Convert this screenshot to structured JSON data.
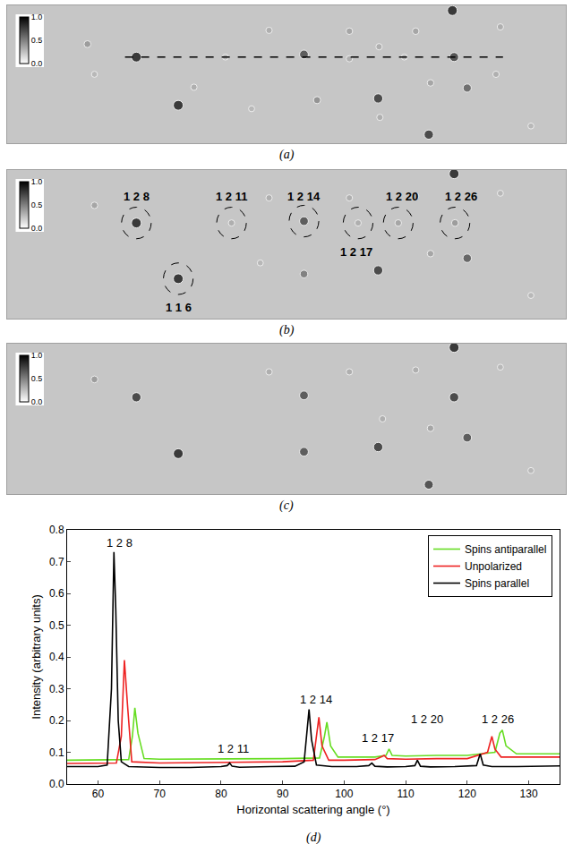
{
  "chart_data": [
    {
      "type": "scatter",
      "title": "(a)",
      "tick_labels": false,
      "xlim": [
        0,
        640
      ],
      "ylim": [
        160,
        0
      ],
      "x": [
        510,
        148,
        340,
        512,
        196,
        425,
        483,
        527,
        92,
        300,
        392,
        426,
        468,
        565,
        250,
        392,
        455,
        485,
        355,
        100,
        214,
        560,
        280,
        427,
        600
      ],
      "y": [
        6,
        60,
        57,
        60,
        116,
        108,
        150,
        96,
        45,
        29,
        30,
        48,
        30,
        25,
        60,
        62,
        60,
        90,
        110,
        80,
        95,
        80,
        120,
        130,
        140
      ],
      "intensity": [
        1.0,
        1.0,
        0.8,
        0.85,
        1.0,
        0.9,
        0.9,
        0.7,
        0.45,
        0.35,
        0.4,
        0.35,
        0.4,
        0.35,
        0.3,
        0.35,
        0.3,
        0.4,
        0.5,
        0.3,
        0.35,
        0.35,
        0.3,
        0.35,
        0.3
      ],
      "colorbar_range": [
        0,
        1
      ],
      "colorbar_ticks": [
        {
          "value": 0,
          "label": "0.0"
        },
        {
          "value": 0.5,
          "label": "0.5"
        },
        {
          "value": 1,
          "label": "1.0"
        }
      ],
      "guide_line": {
        "x": [
          135,
          568
        ],
        "y": 60,
        "line_style": "dashed"
      }
    },
    {
      "type": "scatter",
      "title": "(b)",
      "tick_labels": false,
      "xlim": [
        0,
        640
      ],
      "ylim": [
        160,
        0
      ],
      "x": [
        512,
        148,
        196,
        257,
        340,
        402,
        448,
        513,
        425,
        527,
        340,
        100,
        300,
        392,
        468,
        565,
        485,
        600,
        290
      ],
      "y": [
        4,
        57,
        117,
        57,
        55,
        57,
        57,
        57,
        108,
        95,
        112,
        38,
        30,
        30,
        28,
        25,
        90,
        135,
        100
      ],
      "intensity": [
        1.0,
        1.0,
        1.0,
        0.35,
        0.8,
        0.35,
        0.4,
        0.45,
        0.9,
        0.75,
        0.6,
        0.4,
        0.35,
        0.35,
        0.35,
        0.3,
        0.4,
        0.3,
        0.3
      ],
      "colorbar_range": [
        0,
        1
      ],
      "colorbar_ticks": [
        {
          "value": 0,
          "label": "0.0"
        },
        {
          "value": 0.5,
          "label": "0.5"
        },
        {
          "value": 1,
          "label": "1.0"
        }
      ],
      "annotations": [
        {
          "text": "1 2 8",
          "x": 148,
          "y": 28,
          "target_x": 148,
          "target_y": 57
        },
        {
          "text": "1 2 11",
          "x": 257,
          "y": 28,
          "target_x": 257,
          "target_y": 57
        },
        {
          "text": "1 2 14",
          "x": 340,
          "y": 28,
          "target_x": 340,
          "target_y": 55
        },
        {
          "text": "1 2 20",
          "x": 452,
          "y": 28,
          "target_x": 448,
          "target_y": 57
        },
        {
          "text": "1 2 26",
          "x": 520,
          "y": 28,
          "target_x": 513,
          "target_y": 57
        },
        {
          "text": "1 2 17",
          "x": 400,
          "y": 88,
          "target_x": 402,
          "target_y": 57
        },
        {
          "text": "1 1 6",
          "x": 196,
          "y": 148,
          "target_x": 196,
          "target_y": 117
        }
      ]
    },
    {
      "type": "scatter",
      "title": "(c)",
      "tick_labels": false,
      "xlim": [
        0,
        640
      ],
      "ylim": [
        160,
        0
      ],
      "x": [
        512,
        148,
        340,
        512,
        196,
        425,
        483,
        527,
        340,
        100,
        300,
        392,
        468,
        565,
        485,
        430,
        600
      ],
      "y": [
        4,
        57,
        55,
        57,
        117,
        110,
        150,
        100,
        115,
        38,
        30,
        30,
        28,
        25,
        90,
        80,
        135
      ],
      "intensity": [
        1.0,
        0.9,
        0.8,
        0.9,
        1.0,
        0.9,
        0.85,
        0.8,
        0.8,
        0.45,
        0.35,
        0.35,
        0.35,
        0.3,
        0.4,
        0.35,
        0.3
      ],
      "colorbar_range": [
        0,
        1
      ],
      "colorbar_ticks": [
        {
          "value": 0,
          "label": "0.0"
        },
        {
          "value": 0.5,
          "label": "0.5"
        },
        {
          "value": 1,
          "label": "1.0"
        }
      ]
    },
    {
      "type": "line",
      "title": "(d)",
      "x_label": "Horizontal scattering angle (°)",
      "y_label": "Intensity (arbitrary units)",
      "xlim": [
        55,
        135
      ],
      "xticks": [
        60,
        70,
        80,
        90,
        100,
        110,
        120,
        130
      ],
      "ylim": [
        0,
        0.8
      ],
      "yticks": [
        {
          "value": 0,
          "label": "0.0"
        },
        {
          "value": 0.1,
          "label": "0.1"
        },
        {
          "value": 0.2,
          "label": "0.2"
        },
        {
          "value": 0.3,
          "label": "0.3"
        },
        {
          "value": 0.4,
          "label": "0.4"
        },
        {
          "value": 0.5,
          "label": "0.5"
        },
        {
          "value": 0.6,
          "label": "0.6"
        },
        {
          "value": 0.7,
          "label": "0.7"
        },
        {
          "value": 0.8,
          "label": "0.8"
        }
      ],
      "legend": "upper right",
      "series": [
        {
          "name": "Spins antiparallel",
          "color": "#66dd22",
          "x": [
            55,
            60,
            65,
            65.6,
            66,
            66.5,
            67.5,
            70,
            80,
            90,
            96,
            96.8,
            97.2,
            97.8,
            99,
            105,
            106.8,
            107.3,
            107.8,
            110,
            115,
            120,
            124.5,
            125.3,
            125.7,
            126.3,
            128,
            135
          ],
          "values": [
            0.075,
            0.075,
            0.077,
            0.15,
            0.24,
            0.16,
            0.08,
            0.078,
            0.078,
            0.08,
            0.082,
            0.15,
            0.195,
            0.12,
            0.085,
            0.085,
            0.09,
            0.11,
            0.09,
            0.088,
            0.09,
            0.09,
            0.1,
            0.16,
            0.17,
            0.12,
            0.095,
            0.095
          ]
        },
        {
          "name": "Unpolarized",
          "color": "#ee2222",
          "x": [
            55,
            60,
            63,
            63.8,
            64.3,
            64.8,
            65.5,
            70,
            80,
            90,
            95,
            95.5,
            95.9,
            96.4,
            97.5,
            100,
            105,
            106,
            106.5,
            107,
            110,
            115,
            120,
            123.3,
            124,
            124.5,
            125.5,
            130,
            135
          ],
          "values": [
            0.065,
            0.065,
            0.066,
            0.15,
            0.39,
            0.25,
            0.07,
            0.066,
            0.068,
            0.07,
            0.075,
            0.15,
            0.21,
            0.12,
            0.075,
            0.075,
            0.077,
            0.085,
            0.09,
            0.08,
            0.078,
            0.08,
            0.08,
            0.1,
            0.15,
            0.11,
            0.085,
            0.085,
            0.085
          ]
        },
        {
          "name": "Spins parallel",
          "color": "#000000",
          "x": [
            55,
            58,
            60,
            61.5,
            62.2,
            62.6,
            62.9,
            63.3,
            63.8,
            65,
            70,
            75,
            80,
            81,
            81.4,
            81.8,
            83,
            88,
            92,
            93.5,
            94,
            94.3,
            94.7,
            95.5,
            98,
            102,
            104,
            104.5,
            105,
            107,
            110,
            111.5,
            111.9,
            112.4,
            114,
            118,
            121.5,
            122.1,
            122.6,
            124,
            128,
            132,
            135
          ],
          "values": [
            0.055,
            0.055,
            0.055,
            0.06,
            0.3,
            0.73,
            0.55,
            0.2,
            0.07,
            0.055,
            0.052,
            0.052,
            0.055,
            0.058,
            0.066,
            0.056,
            0.053,
            0.055,
            0.056,
            0.07,
            0.18,
            0.235,
            0.14,
            0.06,
            0.055,
            0.055,
            0.058,
            0.066,
            0.056,
            0.054,
            0.055,
            0.058,
            0.075,
            0.056,
            0.054,
            0.055,
            0.058,
            0.095,
            0.06,
            0.055,
            0.055,
            0.057,
            0.057
          ]
        }
      ],
      "annotations": [
        {
          "text": "1 2 8",
          "x": 63.5,
          "y": 0.76
        },
        {
          "text": "1 2 14",
          "x": 95.5,
          "y": 0.265
        },
        {
          "text": "1 2 11",
          "x": 82,
          "y": 0.11
        },
        {
          "text": "1 2 17",
          "x": 105.5,
          "y": 0.145
        },
        {
          "text": "1 2 20",
          "x": 113.5,
          "y": 0.205
        },
        {
          "text": "1 2 26",
          "x": 125,
          "y": 0.205
        }
      ]
    }
  ]
}
